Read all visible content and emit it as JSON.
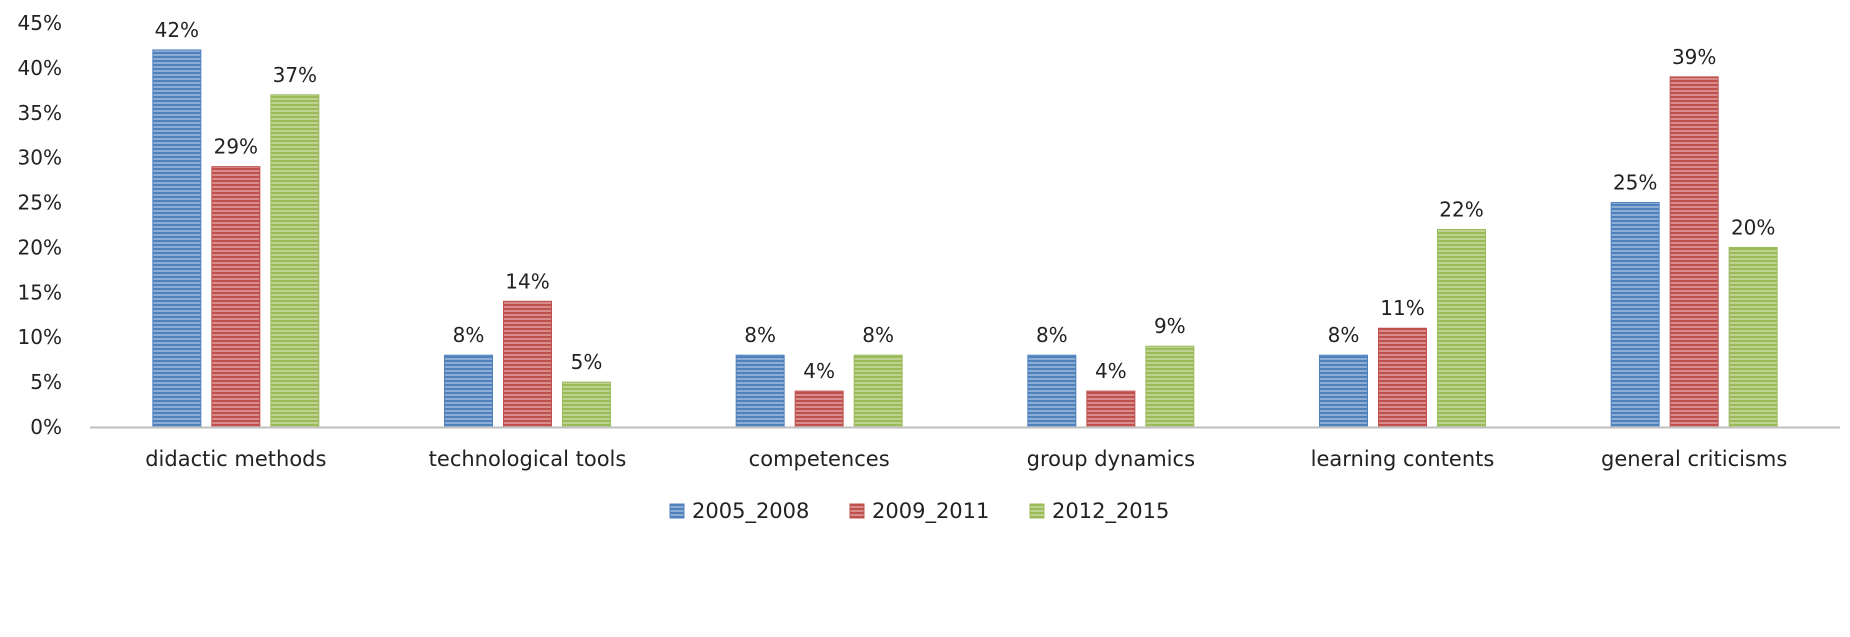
{
  "chart_data": {
    "type": "bar",
    "categories": [
      "didactic methods",
      "technological tools",
      "competences",
      "group dynamics",
      "learning contents",
      "general criticisms"
    ],
    "series": [
      {
        "name": "2005_2008",
        "color": "#4f81bd",
        "values": [
          42,
          8,
          8,
          8,
          8,
          25
        ],
        "labels": [
          "42%",
          "8%",
          "8%",
          "8%",
          "8%",
          "25%"
        ]
      },
      {
        "name": "2009_2011",
        "color": "#c0504d",
        "values": [
          29,
          14,
          4,
          4,
          11,
          39
        ],
        "labels": [
          "29%",
          "14%",
          "4%",
          "4%",
          "11%",
          "39%"
        ]
      },
      {
        "name": "2012_2015",
        "color": "#9bbb59",
        "values": [
          37,
          5,
          8,
          9,
          22,
          20
        ],
        "labels": [
          "37%",
          "5%",
          "8%",
          "9%",
          "22%",
          "20%"
        ]
      }
    ],
    "ylim": [
      0,
      45
    ],
    "yticks": [
      0,
      5,
      10,
      15,
      20,
      25,
      30,
      35,
      40,
      45
    ],
    "ytick_labels": [
      "0%",
      "5%",
      "10%",
      "15%",
      "20%",
      "25%",
      "30%",
      "35%",
      "40%",
      "45%"
    ],
    "title": "",
    "xlabel": "",
    "ylabel": "",
    "grid": false,
    "legend_position": "bottom-center",
    "bar_pattern": "horizontal-stripes"
  }
}
